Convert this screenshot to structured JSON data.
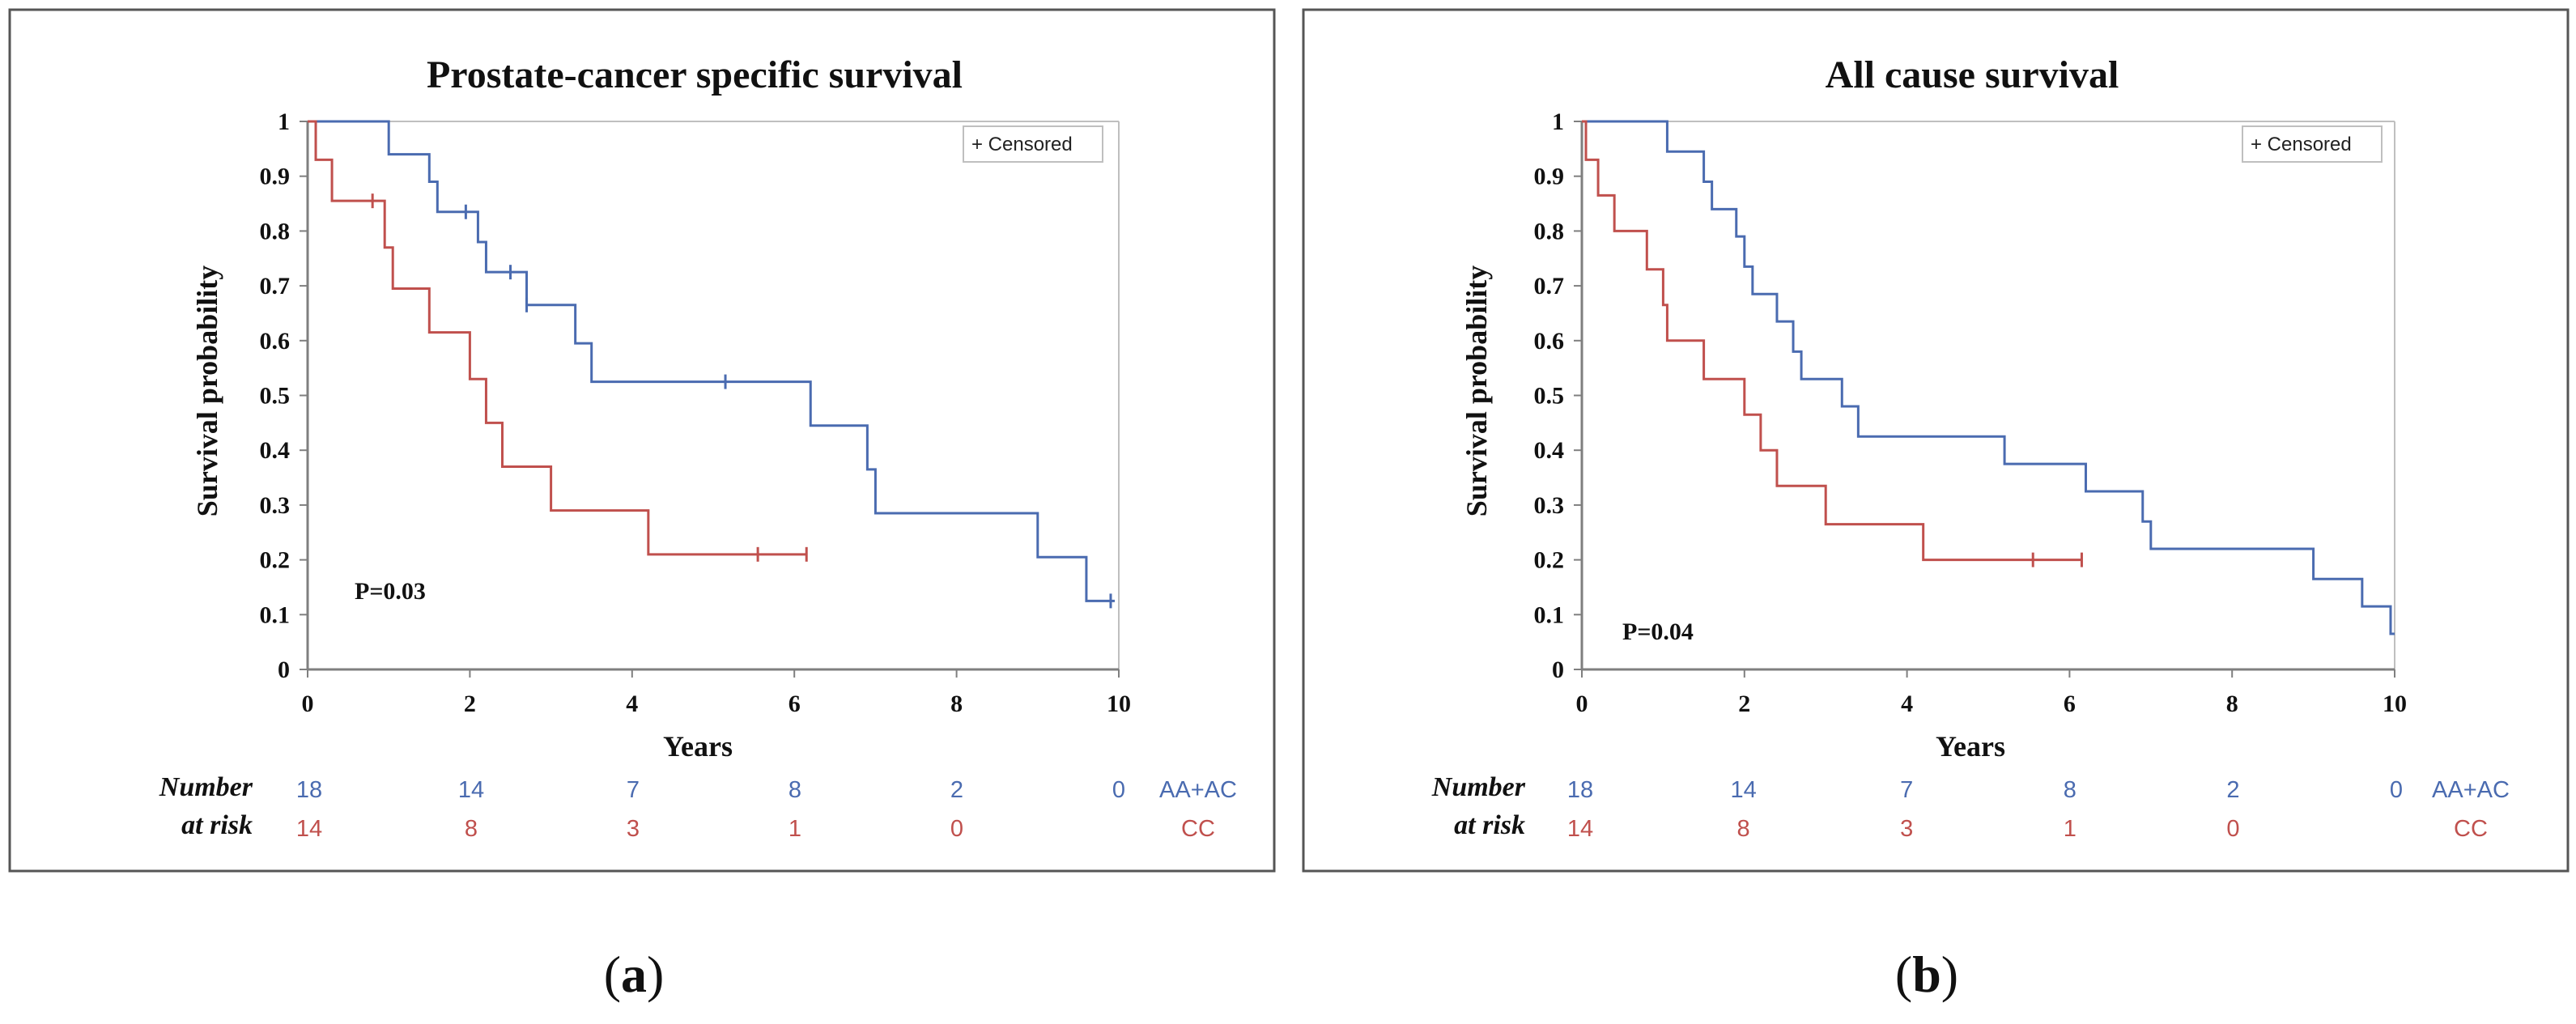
{
  "colors": {
    "group_a": "#4a6bb0",
    "group_b": "#c0504d",
    "axis": "#7f7f7f",
    "frame": "#555555"
  },
  "chart_data": [
    {
      "type": "line",
      "panel": "a",
      "caption_open": "(",
      "caption_label": "a",
      "caption_close": ")",
      "title": "Prostate-cancer specific survival",
      "xlabel": "Years",
      "ylabel": "Survival probability",
      "xlim": [
        0,
        10
      ],
      "ylim": [
        0,
        1
      ],
      "x_ticks": [
        "0",
        "2",
        "4",
        "6",
        "8",
        "10"
      ],
      "y_ticks": [
        "0",
        "0.1",
        "0.2",
        "0.3",
        "0.4",
        "0.5",
        "0.6",
        "0.7",
        "0.8",
        "0.9",
        "1"
      ],
      "legend": "+ Censored",
      "annotation": "P=0.03",
      "series": [
        {
          "name": "AA+AC",
          "color": "#4a6bb0",
          "steps": [
            [
              0,
              1
            ],
            [
              1.0,
              0.94
            ],
            [
              1.5,
              0.89
            ],
            [
              1.6,
              0.835
            ],
            [
              2.1,
              0.78
            ],
            [
              2.2,
              0.725
            ],
            [
              2.7,
              0.665
            ],
            [
              3.3,
              0.595
            ],
            [
              3.5,
              0.525
            ],
            [
              6.2,
              0.445
            ],
            [
              6.9,
              0.365
            ],
            [
              7.0,
              0.285
            ],
            [
              9.0,
              0.205
            ],
            [
              9.6,
              0.125
            ],
            [
              9.95,
              0.125
            ]
          ],
          "censored": [
            [
              1.95,
              0.835
            ],
            [
              2.5,
              0.725
            ],
            [
              2.7,
              0.665
            ],
            [
              5.15,
              0.525
            ],
            [
              9.9,
              0.125
            ]
          ]
        },
        {
          "name": "CC",
          "color": "#c0504d",
          "steps": [
            [
              0,
              1
            ],
            [
              0.1,
              0.93
            ],
            [
              0.3,
              0.855
            ],
            [
              0.95,
              0.77
            ],
            [
              1.05,
              0.695
            ],
            [
              1.5,
              0.615
            ],
            [
              2.0,
              0.53
            ],
            [
              2.2,
              0.45
            ],
            [
              2.4,
              0.37
            ],
            [
              3.0,
              0.29
            ],
            [
              4.2,
              0.21
            ],
            [
              6.15,
              0.21
            ]
          ],
          "censored": [
            [
              0.8,
              0.855
            ],
            [
              5.55,
              0.21
            ],
            [
              6.15,
              0.21
            ]
          ]
        }
      ],
      "risk_table": {
        "label_line1": "Number",
        "label_line2": "at risk",
        "rows": [
          {
            "name": "AA+AC",
            "color": "#4a6bb0",
            "values": [
              "18",
              "14",
              "7",
              "8",
              "2",
              "0"
            ]
          },
          {
            "name": "CC",
            "color": "#c0504d",
            "values": [
              "14",
              "8",
              "3",
              "1",
              "0"
            ]
          }
        ]
      }
    },
    {
      "type": "line",
      "panel": "b",
      "caption_open": "(",
      "caption_label": "b",
      "caption_close": ")",
      "title": "All cause survival",
      "xlabel": "Years",
      "ylabel": "Survival probability",
      "xlim": [
        0,
        10
      ],
      "ylim": [
        0,
        1
      ],
      "x_ticks": [
        "0",
        "2",
        "4",
        "6",
        "8",
        "10"
      ],
      "y_ticks": [
        "0",
        "0.1",
        "0.2",
        "0.3",
        "0.4",
        "0.5",
        "0.6",
        "0.7",
        "0.8",
        "0.9",
        "1"
      ],
      "legend": "+ Censored",
      "annotation": "P=0.04",
      "series": [
        {
          "name": "AA+AC",
          "color": "#4a6bb0",
          "steps": [
            [
              0,
              1
            ],
            [
              1.05,
              0.945
            ],
            [
              1.5,
              0.89
            ],
            [
              1.6,
              0.84
            ],
            [
              1.9,
              0.79
            ],
            [
              2.0,
              0.735
            ],
            [
              2.1,
              0.685
            ],
            [
              2.4,
              0.635
            ],
            [
              2.6,
              0.58
            ],
            [
              2.7,
              0.53
            ],
            [
              3.2,
              0.48
            ],
            [
              3.4,
              0.425
            ],
            [
              5.2,
              0.375
            ],
            [
              6.2,
              0.325
            ],
            [
              6.9,
              0.27
            ],
            [
              7.0,
              0.22
            ],
            [
              9.0,
              0.165
            ],
            [
              9.6,
              0.115
            ],
            [
              9.95,
              0.065
            ],
            [
              10.0,
              0.065
            ]
          ],
          "censored": []
        },
        {
          "name": "CC",
          "color": "#c0504d",
          "steps": [
            [
              0,
              1
            ],
            [
              0.05,
              0.93
            ],
            [
              0.2,
              0.865
            ],
            [
              0.4,
              0.8
            ],
            [
              0.8,
              0.73
            ],
            [
              1.0,
              0.665
            ],
            [
              1.05,
              0.6
            ],
            [
              1.5,
              0.53
            ],
            [
              2.0,
              0.465
            ],
            [
              2.2,
              0.4
            ],
            [
              2.4,
              0.335
            ],
            [
              3.0,
              0.265
            ],
            [
              4.2,
              0.2
            ],
            [
              6.15,
              0.2
            ]
          ],
          "censored": [
            [
              5.55,
              0.2
            ],
            [
              6.15,
              0.2
            ]
          ]
        }
      ],
      "risk_table": {
        "label_line1": "Number",
        "label_line2": "at risk",
        "rows": [
          {
            "name": "AA+AC",
            "color": "#4a6bb0",
            "values": [
              "18",
              "14",
              "7",
              "8",
              "2",
              "0"
            ]
          },
          {
            "name": "CC",
            "color": "#c0504d",
            "values": [
              "14",
              "8",
              "3",
              "1",
              "0"
            ]
          }
        ]
      }
    }
  ]
}
